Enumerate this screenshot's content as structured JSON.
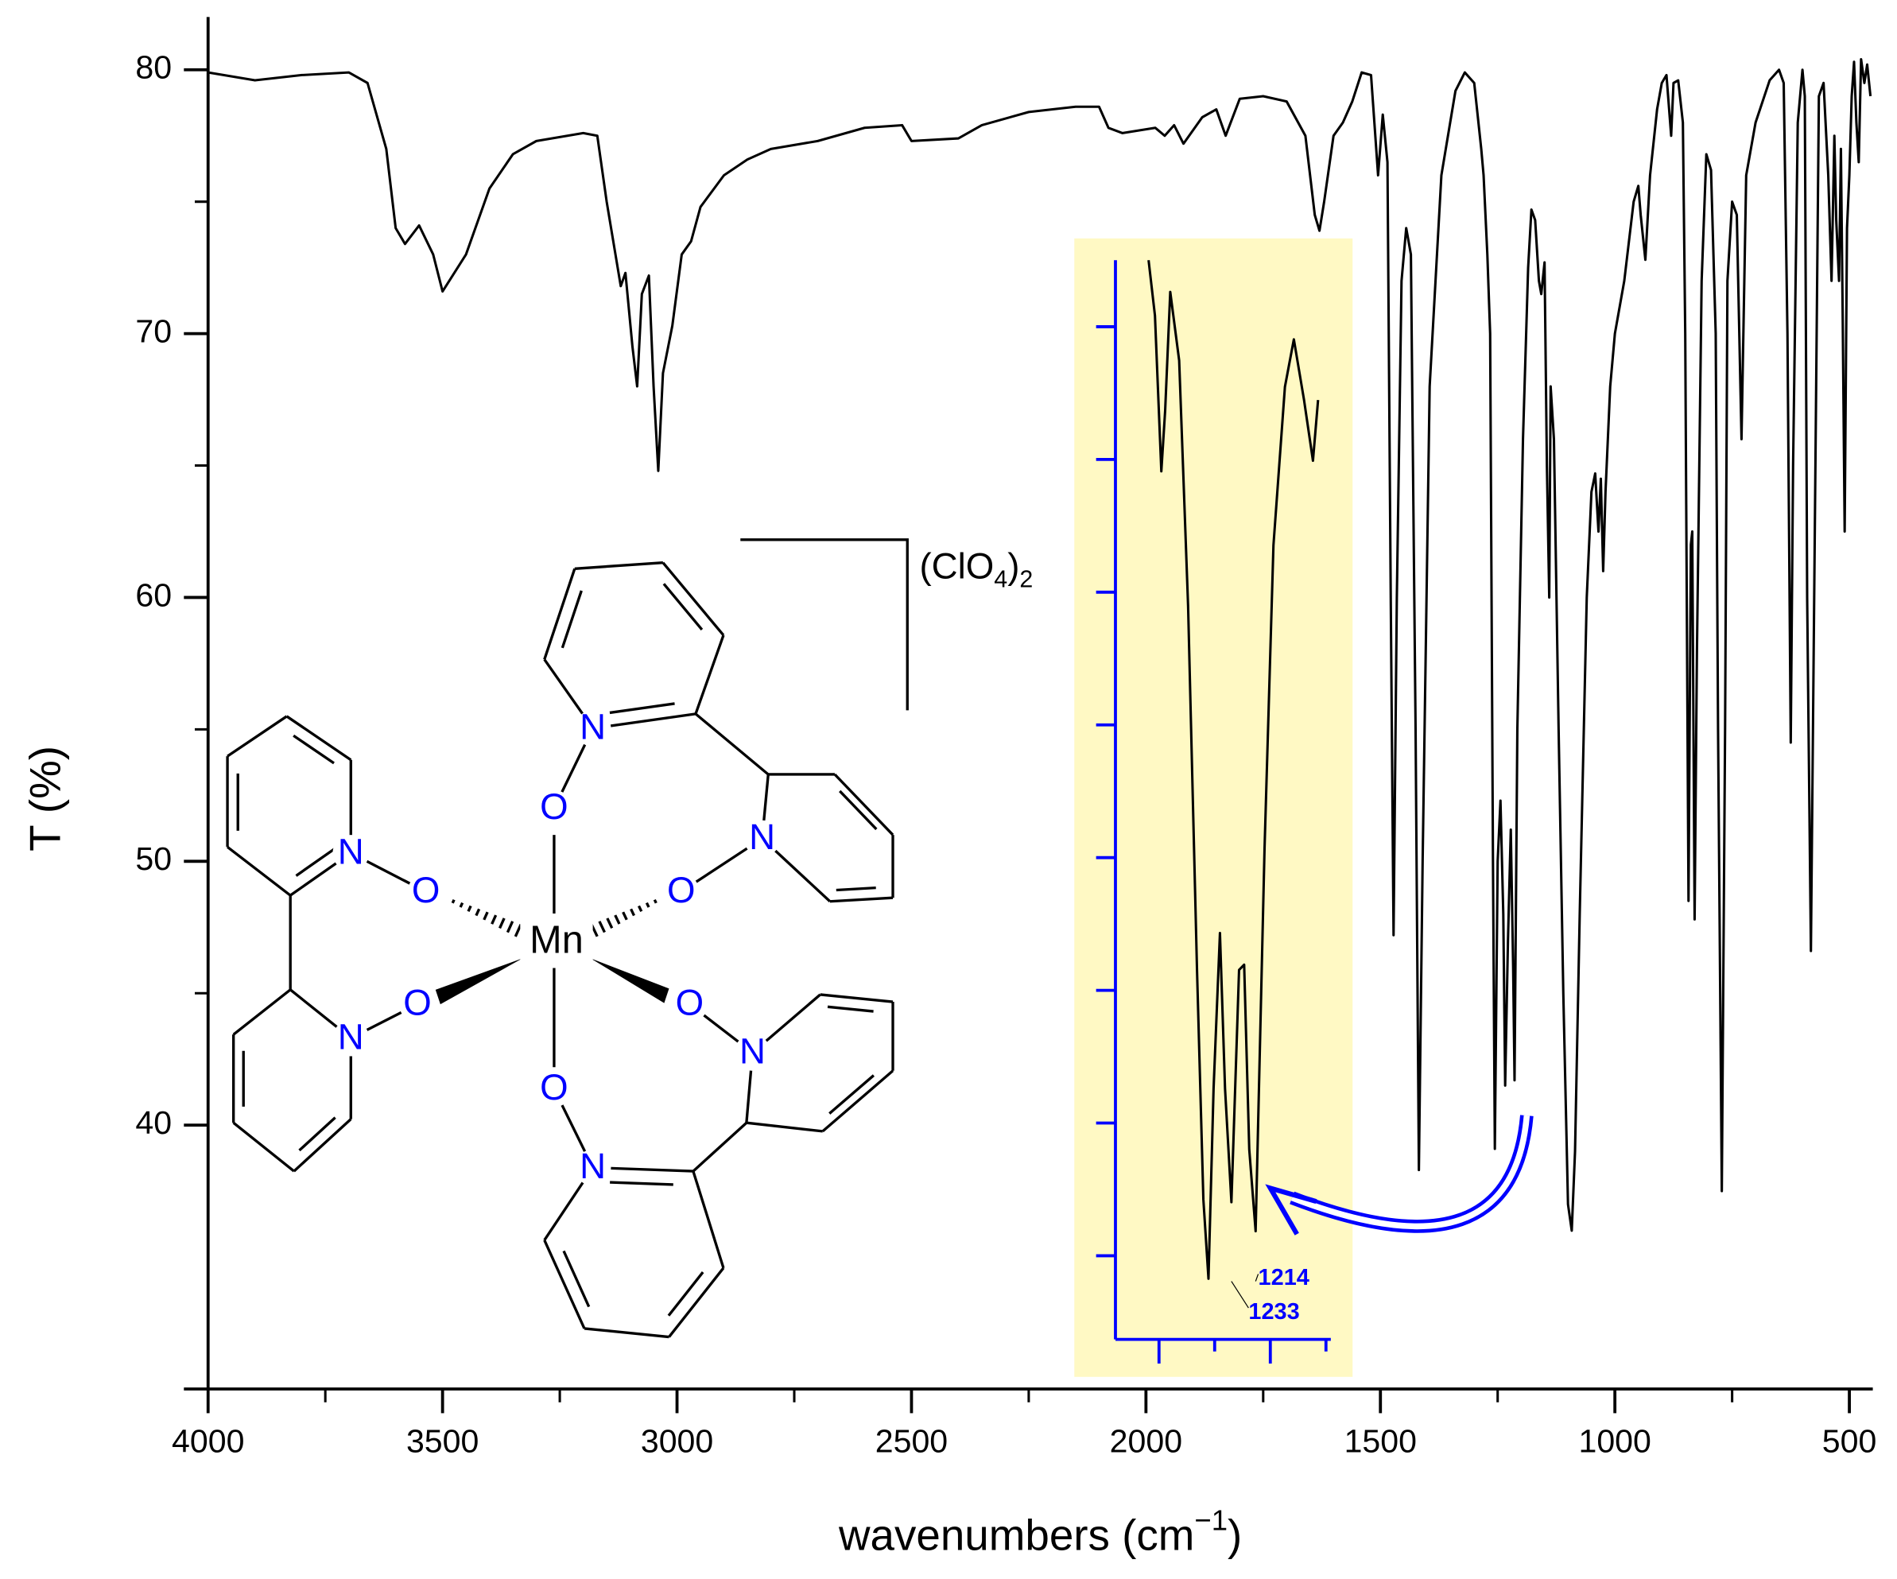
{
  "chart_data": [
    {
      "type": "line",
      "xlabel": [
        "wavenumbers (cm",
        "−1",
        ")"
      ],
      "ylabel": "T (%)",
      "xlim": [
        4000,
        450
      ],
      "ylim": [
        30,
        82
      ],
      "xticks": [
        4000,
        3500,
        3000,
        2500,
        2000,
        1500,
        1000,
        500
      ],
      "yticks": [
        40,
        50,
        60,
        70,
        80
      ],
      "color": "#000000",
      "x": [
        4000,
        3900,
        3800,
        3700,
        3660,
        3620,
        3600,
        3580,
        3550,
        3520,
        3500,
        3450,
        3400,
        3350,
        3300,
        3200,
        3170,
        3150,
        3120,
        3110,
        3095,
        3085,
        3075,
        3060,
        3050,
        3040,
        3030,
        3010,
        2990,
        2970,
        2950,
        2900,
        2850,
        2800,
        2700,
        2600,
        2520,
        2500,
        2400,
        2350,
        2250,
        2150,
        2100,
        2080,
        2050,
        1980,
        1960,
        1940,
        1920,
        1880,
        1850,
        1830,
        1800,
        1750,
        1700,
        1660,
        1640,
        1630,
        1620,
        1600,
        1580,
        1560,
        1540,
        1520,
        1505,
        1495,
        1485,
        1478,
        1472,
        1465,
        1455,
        1445,
        1435,
        1425,
        1418,
        1410,
        1395,
        1370,
        1340,
        1320,
        1300,
        1285,
        1280,
        1272,
        1266,
        1260,
        1256,
        1250,
        1244,
        1238,
        1234,
        1228,
        1222,
        1217,
        1214,
        1208,
        1196,
        1185,
        1178,
        1170,
        1162,
        1157,
        1150,
        1145,
        1140,
        1137,
        1130,
        1120,
        1110,
        1100,
        1092,
        1085,
        1075,
        1060,
        1050,
        1042,
        1035,
        1030,
        1025,
        1020,
        1010,
        1000,
        980,
        960,
        950,
        945,
        935,
        925,
        910,
        900,
        890,
        880,
        875,
        865,
        855,
        850,
        843,
        838,
        835,
        830,
        825,
        815,
        805,
        795,
        785,
        780,
        772,
        765,
        760,
        750,
        740,
        730,
        720,
        700,
        670,
        650,
        640,
        632,
        625,
        620,
        610,
        600,
        595,
        590,
        582,
        575,
        565,
        555,
        545,
        538,
        532,
        528,
        522,
        518,
        514,
        510,
        505,
        500,
        495,
        490,
        485,
        480,
        475,
        468,
        462,
        455
      ],
      "values": [
        79.9,
        79.6,
        79.8,
        79.9,
        79.5,
        77,
        74,
        73.4,
        74.1,
        73,
        71.6,
        73,
        75.5,
        76.8,
        77.3,
        77.6,
        77.5,
        75,
        71.8,
        72.3,
        69.5,
        68,
        71.5,
        72.2,
        68,
        64.8,
        68.5,
        70.3,
        73,
        73.5,
        74.8,
        76,
        76.6,
        77,
        77.3,
        77.8,
        77.9,
        77.3,
        77.4,
        77.9,
        78.4,
        78.6,
        78.6,
        77.8,
        77.6,
        77.8,
        77.5,
        77.9,
        77.2,
        78.2,
        78.5,
        77.5,
        78.9,
        79,
        78.8,
        77.5,
        74.5,
        73.9,
        75,
        77.5,
        78,
        78.8,
        79.9,
        79.8,
        76,
        78.3,
        76.5,
        60,
        47.2,
        60,
        72,
        74,
        73,
        55,
        38.3,
        50,
        68,
        76,
        79.2,
        79.9,
        79.5,
        77,
        76,
        73,
        70,
        50,
        39.1,
        50,
        52.3,
        48,
        41.5,
        47,
        51.2,
        46,
        41.7,
        55,
        66,
        72.5,
        74.7,
        74.3,
        72,
        71.5,
        72.7,
        65,
        60,
        68,
        66,
        55,
        45,
        37,
        36,
        39,
        48,
        60,
        64,
        64.7,
        62.5,
        64.5,
        61,
        64,
        68,
        70,
        72,
        75,
        75.6,
        74.5,
        72.8,
        76,
        78.5,
        79.5,
        79.8,
        77.5,
        79.5,
        79.6,
        78,
        70,
        48.5,
        62,
        62.5,
        47.8,
        58,
        72,
        76.8,
        76.2,
        70,
        55,
        37.5,
        55,
        72,
        75,
        74.5,
        66,
        76,
        78,
        79.6,
        80,
        79.5,
        70,
        54.5,
        65,
        78,
        80,
        79,
        60,
        46.6,
        60,
        79,
        79.5,
        76,
        72,
        77.5,
        74.3,
        72,
        77,
        70.3,
        62.5,
        74,
        76,
        79,
        80.3,
        78,
        76.5,
        80.4,
        79.5,
        80.2,
        79
      ]
    },
    {
      "type": "line",
      "xlim": [
        1324,
        1155
      ],
      "ylim": [
        36.8,
        77.7
      ],
      "color": "#000000",
      "axis_color": "#0000ff",
      "background": "#fff9c4",
      "annotations": [
        1214,
        1233
      ],
      "annotation_color": "#0000ff",
      "x": [
        1298,
        1293,
        1288,
        1285,
        1281,
        1274,
        1267,
        1260,
        1255,
        1251,
        1247,
        1242,
        1238,
        1233,
        1227,
        1223,
        1219,
        1214,
        1207,
        1200,
        1191,
        1184,
        1176,
        1169,
        1165
      ],
      "values": [
        77.7,
        75.6,
        69.7,
        72,
        76.5,
        73.9,
        64.6,
        50.8,
        42.1,
        39.1,
        46.3,
        52.2,
        46.3,
        42,
        50.8,
        51,
        44,
        40.9,
        55.4,
        66.9,
        72.9,
        74.7,
        72.4,
        70.1,
        72.4
      ]
    }
  ],
  "structure": {
    "metal": "Mn",
    "nitrogen": "N",
    "oxygen": "O",
    "counterion": [
      "(ClO",
      "4",
      ")",
      "2"
    ]
  }
}
